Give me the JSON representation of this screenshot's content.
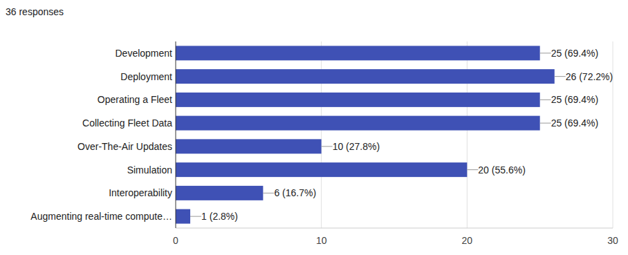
{
  "chart_data": {
    "type": "bar",
    "orientation": "horizontal",
    "title": "36 responses",
    "categories": [
      "Development",
      "Deployment",
      "Operating a Fleet",
      "Collecting Fleet Data",
      "Over-The-Air Updates",
      "Simulation",
      "Interoperability",
      "Augmenting real-time compute…"
    ],
    "values": [
      25,
      26,
      25,
      25,
      10,
      20,
      6,
      1
    ],
    "value_labels": [
      "25 (69.4%)",
      "26 (72.2%)",
      "25 (69.4%)",
      "25 (69.4%)",
      "10 (27.8%)",
      "20 (55.6%)",
      "6 (16.7%)",
      "1 (2.8%)"
    ],
    "data_labels": true,
    "color": "#3f51b5",
    "xlim": [
      0,
      30
    ],
    "xticks": [
      0,
      10,
      20,
      30
    ],
    "grid": true
  }
}
